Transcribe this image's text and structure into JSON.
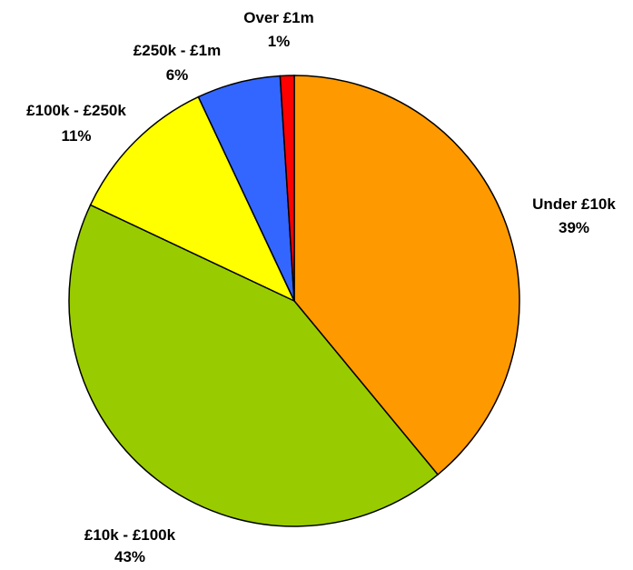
{
  "chart_data": {
    "type": "pie",
    "title": "",
    "start_angle_deg": 0,
    "direction": "clockwise",
    "slices": [
      {
        "label": "Under £10k",
        "percent_label": "39%",
        "value": 39,
        "color": "#FF9900"
      },
      {
        "label": "£10k - £100k",
        "percent_label": "43%",
        "value": 43,
        "color": "#99CC00"
      },
      {
        "label": "£100k - £250k",
        "percent_label": "11%",
        "value": 11,
        "color": "#FFFF00"
      },
      {
        "label": "£250k - £1m",
        "percent_label": "6%",
        "value": 6,
        "color": "#3366FF"
      },
      {
        "label": "Over £1m",
        "percent_label": "1%",
        "value": 1,
        "color": "#FF0000"
      }
    ],
    "legend": "none"
  }
}
